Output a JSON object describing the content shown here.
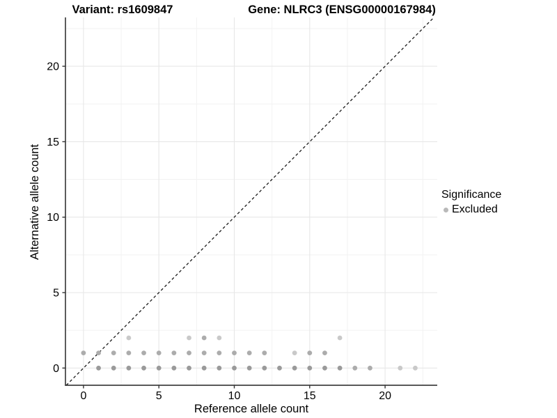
{
  "chart_data": {
    "type": "scatter",
    "titles": {
      "variant": "Variant: rs1609847",
      "gene": "Gene: NLRC3 (ENSG00000167984)"
    },
    "xlabel": "Reference allele count",
    "ylabel": "Alternative allele count",
    "xlim": [
      -1.2,
      23.5
    ],
    "ylim": [
      -1.2,
      23.3
    ],
    "xticks": [
      0,
      5,
      10,
      15,
      20
    ],
    "yticks": [
      0,
      5,
      10,
      15,
      20
    ],
    "minor_ticks": [
      2.5,
      7.5,
      12.5,
      17.5,
      22.5
    ],
    "grid": "major+minor",
    "identity_line": {
      "slope": 1,
      "intercept": 0,
      "style": "dashed",
      "color": "#1a1a1a"
    },
    "legend": {
      "title": "Significance",
      "position": "right",
      "items": [
        {
          "label": "Excluded",
          "color": "#b9b9b9"
        }
      ]
    },
    "point_colors": {
      "d": "#9a9a9a",
      "m": "#acacac",
      "l": "#c9c9c9"
    },
    "points": [
      [
        1,
        0,
        "d"
      ],
      [
        2,
        0,
        "d"
      ],
      [
        3,
        0,
        "d"
      ],
      [
        4,
        0,
        "d"
      ],
      [
        5,
        0,
        "d"
      ],
      [
        6,
        0,
        "d"
      ],
      [
        7,
        0,
        "d"
      ],
      [
        8,
        0,
        "d"
      ],
      [
        9,
        0,
        "d"
      ],
      [
        10,
        0,
        "d"
      ],
      [
        11,
        0,
        "d"
      ],
      [
        12,
        0,
        "d"
      ],
      [
        13,
        0,
        "d"
      ],
      [
        14,
        0,
        "d"
      ],
      [
        15,
        0,
        "d"
      ],
      [
        16,
        0,
        "d"
      ],
      [
        17,
        0,
        "d"
      ],
      [
        18,
        0,
        "m"
      ],
      [
        19,
        0,
        "m"
      ],
      [
        21,
        0,
        "l"
      ],
      [
        22,
        0,
        "l"
      ],
      [
        0,
        1,
        "m"
      ],
      [
        1,
        1,
        "m"
      ],
      [
        2,
        1,
        "m"
      ],
      [
        3,
        1,
        "m"
      ],
      [
        4,
        1,
        "m"
      ],
      [
        5,
        1,
        "m"
      ],
      [
        6,
        1,
        "m"
      ],
      [
        7,
        1,
        "m"
      ],
      [
        8,
        1,
        "m"
      ],
      [
        9,
        1,
        "m"
      ],
      [
        10,
        1,
        "m"
      ],
      [
        11,
        1,
        "m"
      ],
      [
        12,
        1,
        "m"
      ],
      [
        14,
        1,
        "l"
      ],
      [
        15,
        1,
        "m"
      ],
      [
        16,
        1,
        "m"
      ],
      [
        3,
        2,
        "l"
      ],
      [
        7,
        2,
        "l"
      ],
      [
        8,
        2,
        "m"
      ],
      [
        9,
        2,
        "l"
      ],
      [
        17,
        2,
        "l"
      ]
    ],
    "axis_color": "#404040",
    "grid_major_color": "#e7e7e7",
    "grid_minor_color": "#f2f2f2"
  }
}
